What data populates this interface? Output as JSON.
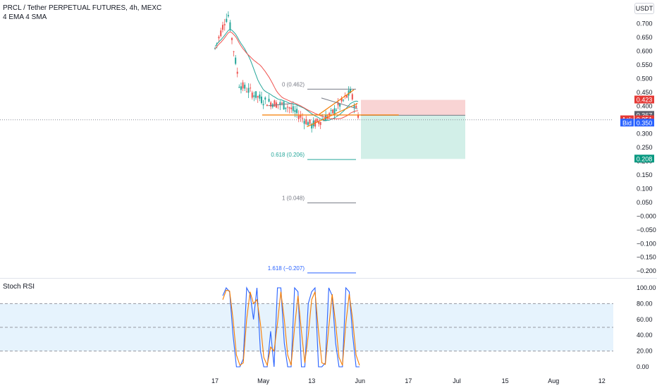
{
  "header": {
    "title": "PRCL / Tether PERPETUAL FUTURES, 4h, MEXC",
    "indicators": "4 EMA 4 SMA",
    "unit_button": "USDT"
  },
  "rsi_panel": {
    "title": "Stoch RSI"
  },
  "colors": {
    "up": "#26a69a",
    "down": "#ef5350",
    "ema": "#26a69a",
    "sma": "#ef5350",
    "channel": "#f57c00",
    "rsi_k": "#2962ff",
    "rsi_d": "#f57c00",
    "stop_zone": "#f7c9c9",
    "target_zone": "#c7ebe2",
    "rsi_band": "#e3f2fd"
  },
  "chart_data": [
    {
      "type": "candlestick",
      "title": "PRCL / Tether PERPETUAL FUTURES, 4h, MEXC",
      "x_ticks": [
        "17",
        "May",
        "13",
        "Jun",
        "17",
        "Jul",
        "15",
        "Aug",
        "12"
      ],
      "x_tick_pos": [
        0,
        2,
        4,
        6,
        8,
        10,
        12,
        14,
        16
      ],
      "y_ticks": [
        "0.700",
        "0.650",
        "0.600",
        "0.550",
        "0.500",
        "0.450",
        "0.400",
        "0.350",
        "0.300",
        "0.250",
        "0.200",
        "0.150",
        "0.100",
        "0.050",
        "−0.000",
        "−0.050",
        "−0.100",
        "−0.150",
        "−0.200"
      ],
      "ylim": [
        -0.22,
        0.73
      ],
      "price_scale": {
        "ask": {
          "label": "Ask",
          "value": "0.351"
        },
        "bid": {
          "label": "Bid",
          "value": "0.350"
        },
        "stop": "0.423",
        "entry": "0.367",
        "target": "0.208"
      },
      "fib_levels": [
        {
          "label": "0 (0.462)",
          "value": 0.462
        },
        {
          "label": "0.618 (0.206)",
          "value": 0.206
        },
        {
          "label": "1 (0.048)",
          "value": 0.048
        },
        {
          "label": "1.618 (−0.207)",
          "value": -0.207
        }
      ],
      "key_points": [
        {
          "x": 0.0,
          "price": 0.61
        },
        {
          "x": 0.4,
          "price": 0.71
        },
        {
          "x": 0.55,
          "price": 0.73
        },
        {
          "x": 1.0,
          "price": 0.48
        },
        {
          "x": 2.0,
          "price": 0.42
        },
        {
          "x": 3.0,
          "price": 0.4
        },
        {
          "x": 4.0,
          "price": 0.33
        },
        {
          "x": 4.8,
          "price": 0.37
        },
        {
          "x": 5.6,
          "price": 0.45
        },
        {
          "x": 6.0,
          "price": 0.35
        }
      ],
      "position": {
        "entry": 0.367,
        "stop": 0.423,
        "target": 0.208
      }
    },
    {
      "type": "line",
      "title": "Stoch RSI",
      "y_ticks": [
        "100.00",
        "80.00",
        "60.00",
        "40.00",
        "20.00",
        "0.00"
      ],
      "ylim": [
        0,
        100
      ],
      "band": [
        20,
        80
      ],
      "midline": 50,
      "series": [
        {
          "values": [
            90,
            100,
            95,
            40,
            0,
            0,
            10,
            100,
            92,
            60,
            100,
            20,
            0,
            0,
            45,
            0,
            100,
            100,
            30,
            0,
            0,
            100,
            95,
            0,
            0,
            80,
            95,
            100,
            0,
            0,
            5,
            100,
            90,
            30,
            0,
            0,
            100,
            95,
            40,
            0,
            0
          ]
        },
        {
          "values": [
            85,
            97,
            96,
            60,
            15,
            2,
            5,
            60,
            95,
            80,
            85,
            55,
            12,
            2,
            25,
            20,
            55,
            95,
            60,
            15,
            2,
            50,
            90,
            45,
            5,
            40,
            85,
            95,
            45,
            5,
            3,
            50,
            92,
            55,
            12,
            2,
            55,
            92,
            60,
            15,
            2
          ]
        }
      ]
    }
  ]
}
